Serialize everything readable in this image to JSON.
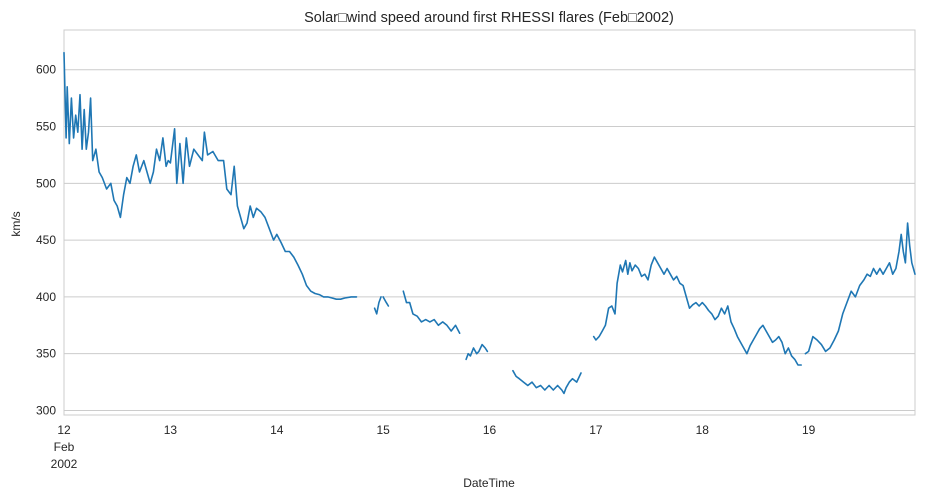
{
  "chart_data": {
    "type": "line",
    "title": "Solar□wind speed around first RHESSI flares (Feb□2002)",
    "xlabel": "DateTime",
    "ylabel": "km/s",
    "x_ticks": [
      "12",
      "13",
      "14",
      "15",
      "16",
      "17",
      "18",
      "19"
    ],
    "x_tick_extra": [
      "Feb",
      "2002"
    ],
    "xlim": [
      12,
      20
    ],
    "y_ticks": [
      300,
      350,
      400,
      450,
      500,
      550,
      600
    ],
    "ylim": [
      296,
      635
    ],
    "grid": "horizontal",
    "line_color": "#1f77b4",
    "series": [
      {
        "segments": [
          [
            [
              12.0,
              615
            ],
            [
              12.02,
              540
            ],
            [
              12.03,
              585
            ],
            [
              12.05,
              535
            ],
            [
              12.07,
              575
            ],
            [
              12.09,
              540
            ],
            [
              12.11,
              560
            ],
            [
              12.13,
              545
            ],
            [
              12.15,
              578
            ],
            [
              12.17,
              530
            ],
            [
              12.19,
              565
            ],
            [
              12.21,
              530
            ],
            [
              12.23,
              545
            ],
            [
              12.25,
              575
            ],
            [
              12.27,
              520
            ],
            [
              12.3,
              530
            ],
            [
              12.33,
              510
            ],
            [
              12.36,
              505
            ],
            [
              12.4,
              495
            ],
            [
              12.44,
              500
            ],
            [
              12.47,
              485
            ],
            [
              12.5,
              480
            ],
            [
              12.53,
              470
            ],
            [
              12.56,
              490
            ],
            [
              12.59,
              505
            ],
            [
              12.62,
              500
            ],
            [
              12.65,
              515
            ],
            [
              12.68,
              525
            ],
            [
              12.71,
              510
            ],
            [
              12.75,
              520
            ],
            [
              12.78,
              510
            ],
            [
              12.81,
              500
            ],
            [
              12.84,
              510
            ],
            [
              12.87,
              530
            ],
            [
              12.9,
              520
            ],
            [
              12.93,
              540
            ],
            [
              12.96,
              515
            ],
            [
              12.98,
              520
            ],
            [
              13.0,
              518
            ],
            [
              13.04,
              548
            ],
            [
              13.06,
              500
            ],
            [
              13.09,
              535
            ],
            [
              13.12,
              500
            ],
            [
              13.15,
              540
            ],
            [
              13.18,
              515
            ],
            [
              13.22,
              530
            ],
            [
              13.26,
              525
            ],
            [
              13.3,
              520
            ],
            [
              13.32,
              545
            ],
            [
              13.35,
              525
            ],
            [
              13.4,
              528
            ],
            [
              13.45,
              520
            ],
            [
              13.5,
              520
            ],
            [
              13.53,
              495
            ],
            [
              13.57,
              490
            ],
            [
              13.6,
              515
            ],
            [
              13.63,
              480
            ],
            [
              13.66,
              470
            ],
            [
              13.69,
              460
            ],
            [
              13.72,
              465
            ],
            [
              13.75,
              480
            ],
            [
              13.78,
              470
            ],
            [
              13.81,
              478
            ],
            [
              13.85,
              475
            ],
            [
              13.89,
              470
            ],
            [
              13.93,
              460
            ],
            [
              13.97,
              450
            ],
            [
              14.0,
              455
            ],
            [
              14.04,
              448
            ],
            [
              14.08,
              440
            ],
            [
              14.12,
              440
            ],
            [
              14.16,
              435
            ],
            [
              14.2,
              428
            ],
            [
              14.24,
              420
            ],
            [
              14.28,
              410
            ],
            [
              14.32,
              405
            ],
            [
              14.36,
              403
            ],
            [
              14.4,
              402
            ],
            [
              14.44,
              400
            ],
            [
              14.48,
              400
            ],
            [
              14.52,
              399
            ],
            [
              14.56,
              398
            ],
            [
              14.6,
              398
            ],
            [
              14.64,
              399
            ],
            [
              14.7,
              400
            ],
            [
              14.75,
              400
            ]
          ],
          [
            [
              14.92,
              390
            ],
            [
              14.94,
              385
            ],
            [
              14.96,
              395
            ],
            [
              14.98,
              400
            ]
          ],
          [
            [
              15.0,
              400
            ],
            [
              15.03,
              395
            ],
            [
              15.05,
              392
            ]
          ],
          [
            [
              15.19,
              405
            ],
            [
              15.22,
              395
            ],
            [
              15.25,
              395
            ],
            [
              15.28,
              385
            ],
            [
              15.32,
              383
            ],
            [
              15.36,
              378
            ],
            [
              15.4,
              380
            ],
            [
              15.44,
              378
            ],
            [
              15.48,
              380
            ],
            [
              15.52,
              375
            ],
            [
              15.56,
              378
            ],
            [
              15.6,
              375
            ],
            [
              15.64,
              370
            ],
            [
              15.68,
              375
            ],
            [
              15.72,
              368
            ]
          ],
          [
            [
              15.78,
              345
            ],
            [
              15.8,
              350
            ],
            [
              15.82,
              348
            ],
            [
              15.85,
              355
            ],
            [
              15.88,
              350
            ],
            [
              15.9,
              352
            ],
            [
              15.93,
              358
            ],
            [
              15.96,
              355
            ],
            [
              15.98,
              352
            ]
          ],
          [
            [
              16.22,
              335
            ],
            [
              16.25,
              330
            ],
            [
              16.28,
              328
            ],
            [
              16.32,
              325
            ],
            [
              16.36,
              322
            ],
            [
              16.4,
              325
            ],
            [
              16.44,
              320
            ],
            [
              16.48,
              322
            ],
            [
              16.52,
              318
            ],
            [
              16.56,
              322
            ],
            [
              16.6,
              318
            ],
            [
              16.64,
              322
            ],
            [
              16.68,
              318
            ],
            [
              16.7,
              315
            ],
            [
              16.72,
              320
            ],
            [
              16.75,
              325
            ],
            [
              16.78,
              328
            ],
            [
              16.82,
              325
            ],
            [
              16.86,
              333
            ]
          ],
          [
            [
              16.98,
              365
            ],
            [
              17.0,
              362
            ],
            [
              17.03,
              365
            ],
            [
              17.06,
              370
            ],
            [
              17.09,
              375
            ],
            [
              17.12,
              390
            ],
            [
              17.15,
              392
            ],
            [
              17.18,
              385
            ],
            [
              17.2,
              412
            ],
            [
              17.23,
              428
            ],
            [
              17.25,
              422
            ],
            [
              17.28,
              432
            ],
            [
              17.3,
              420
            ],
            [
              17.32,
              430
            ],
            [
              17.34,
              423
            ],
            [
              17.37,
              428
            ],
            [
              17.4,
              425
            ],
            [
              17.43,
              418
            ],
            [
              17.46,
              420
            ],
            [
              17.49,
              415
            ],
            [
              17.52,
              428
            ],
            [
              17.55,
              435
            ],
            [
              17.58,
              430
            ],
            [
              17.61,
              425
            ],
            [
              17.64,
              420
            ],
            [
              17.67,
              425
            ],
            [
              17.7,
              420
            ],
            [
              17.73,
              415
            ],
            [
              17.76,
              418
            ],
            [
              17.79,
              412
            ],
            [
              17.82,
              410
            ],
            [
              17.85,
              400
            ],
            [
              17.88,
              390
            ],
            [
              17.91,
              393
            ],
            [
              17.94,
              395
            ],
            [
              17.97,
              392
            ],
            [
              18.0,
              395
            ],
            [
              18.03,
              392
            ],
            [
              18.06,
              388
            ],
            [
              18.09,
              385
            ],
            [
              18.12,
              380
            ],
            [
              18.15,
              383
            ],
            [
              18.18,
              390
            ],
            [
              18.21,
              385
            ],
            [
              18.24,
              392
            ],
            [
              18.27,
              378
            ],
            [
              18.3,
              372
            ],
            [
              18.33,
              365
            ],
            [
              18.36,
              360
            ],
            [
              18.39,
              355
            ],
            [
              18.42,
              350
            ],
            [
              18.45,
              357
            ],
            [
              18.48,
              362
            ],
            [
              18.51,
              367
            ],
            [
              18.54,
              372
            ],
            [
              18.57,
              375
            ],
            [
              18.6,
              370
            ],
            [
              18.63,
              365
            ],
            [
              18.66,
              360
            ],
            [
              18.69,
              362
            ],
            [
              18.72,
              365
            ],
            [
              18.75,
              360
            ],
            [
              18.78,
              350
            ],
            [
              18.81,
              355
            ],
            [
              18.84,
              348
            ],
            [
              18.87,
              345
            ],
            [
              18.9,
              340
            ],
            [
              18.93,
              340
            ]
          ],
          [
            [
              18.97,
              350
            ],
            [
              19.0,
              352
            ],
            [
              19.04,
              365
            ],
            [
              19.08,
              362
            ],
            [
              19.12,
              358
            ],
            [
              19.16,
              352
            ],
            [
              19.2,
              355
            ],
            [
              19.24,
              362
            ],
            [
              19.28,
              370
            ],
            [
              19.32,
              385
            ],
            [
              19.36,
              395
            ],
            [
              19.4,
              405
            ],
            [
              19.44,
              400
            ],
            [
              19.48,
              410
            ],
            [
              19.52,
              415
            ],
            [
              19.55,
              420
            ],
            [
              19.58,
              418
            ],
            [
              19.61,
              425
            ],
            [
              19.64,
              420
            ],
            [
              19.67,
              425
            ],
            [
              19.7,
              420
            ],
            [
              19.73,
              425
            ],
            [
              19.76,
              430
            ],
            [
              19.79,
              420
            ],
            [
              19.82,
              425
            ],
            [
              19.85,
              440
            ],
            [
              19.87,
              455
            ],
            [
              19.89,
              440
            ],
            [
              19.91,
              430
            ],
            [
              19.93,
              465
            ],
            [
              19.95,
              445
            ],
            [
              19.97,
              430
            ],
            [
              20.0,
              420
            ]
          ]
        ]
      }
    ]
  }
}
